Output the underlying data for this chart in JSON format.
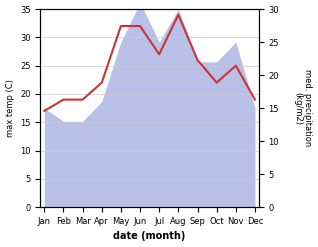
{
  "months": [
    "Jan",
    "Feb",
    "Mar",
    "Apr",
    "May",
    "Jun",
    "Jul",
    "Aug",
    "Sep",
    "Oct",
    "Nov",
    "Dec"
  ],
  "temp": [
    17,
    19,
    19,
    22,
    32,
    32,
    27,
    34,
    26,
    22,
    25,
    19
  ],
  "precip": [
    15,
    13,
    13,
    16,
    25,
    31,
    25,
    30,
    22,
    22,
    25,
    15
  ],
  "temp_color": "#cc3333",
  "precip_fill_color": "#b8c0e8",
  "ylabel_left": "max temp (C)",
  "ylabel_right": "med. precipitation\n(kg/m2)",
  "xlabel": "date (month)",
  "ylim_left": [
    0,
    35
  ],
  "ylim_right": [
    0,
    30
  ],
  "yticks_left": [
    0,
    5,
    10,
    15,
    20,
    25,
    30,
    35
  ],
  "yticks_right": [
    0,
    5,
    10,
    15,
    20,
    25,
    30
  ],
  "bg_color": "#ffffff"
}
